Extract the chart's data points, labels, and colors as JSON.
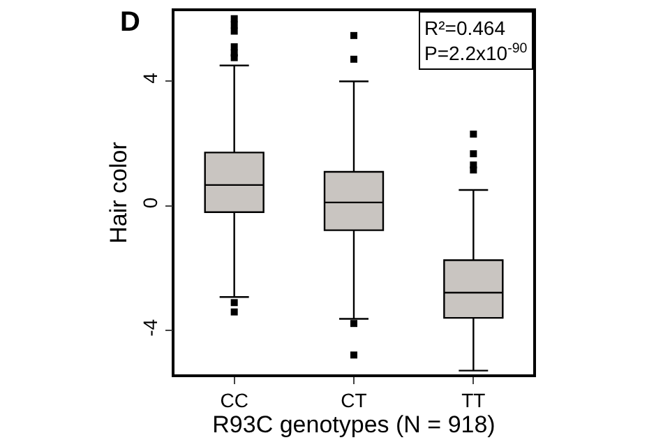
{
  "chart_data": {
    "type": "box",
    "xlabel": "R93C genotypes (N = 918)",
    "ylabel": "Hair color",
    "categories": [
      "CC",
      "CT",
      "TT"
    ],
    "ylim": [
      -5.4,
      6.24
    ],
    "yticks": [
      -4,
      0,
      4
    ],
    "grid": false,
    "series": [
      {
        "color": "#c9c5c1",
        "boxes": [
          {
            "low": -2.92,
            "q1": -0.2,
            "median": 0.67,
            "q3": 1.71,
            "high": 4.5,
            "outliers": [
              6.0,
              5.8,
              5.6,
              5.1,
              4.9,
              4.75,
              -3.1,
              -3.4
            ]
          },
          {
            "low": -3.62,
            "q1": -0.78,
            "median": 0.11,
            "q3": 1.09,
            "high": 3.99,
            "outliers": [
              5.46,
              4.7,
              -3.77,
              -4.78
            ]
          },
          {
            "low": -5.28,
            "q1": -3.59,
            "median": -2.78,
            "q3": -1.74,
            "high": 0.51,
            "outliers": [
              2.3,
              1.67,
              1.31,
              1.15
            ]
          }
        ]
      }
    ],
    "annotations": [
      "D",
      "R²=0.464\nP=2.2x10$^{-90}$"
    ]
  }
}
